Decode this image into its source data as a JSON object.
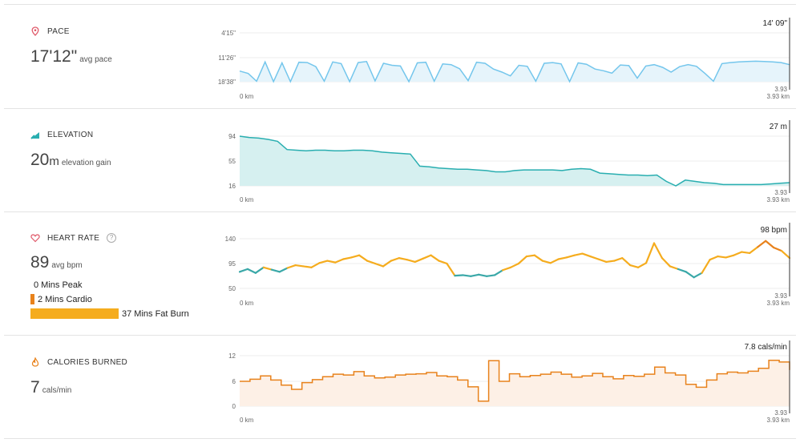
{
  "pace": {
    "title": "PACE",
    "value": "17'12\"",
    "unit": "avg pace",
    "y_ticks": [
      "4'15\"",
      "11'26\"",
      "18'38\""
    ],
    "peak_label": "14' 09\"",
    "x_start": "0 km",
    "x_end_top": "3.93",
    "x_end": "3.93 km",
    "color": "#74c6ec"
  },
  "elevation": {
    "title": "ELEVATION",
    "value": "20",
    "value_unit": "m",
    "unit": "elevation gain",
    "y_ticks": [
      "94",
      "55",
      "16"
    ],
    "peak_label": "27 m",
    "x_start": "0 km",
    "x_end_top": "3.93",
    "x_end": "3.93 km",
    "color": "#29aeb0"
  },
  "heart_rate": {
    "title": "HEART RATE",
    "help": "?",
    "value": "89",
    "unit": "avg bpm",
    "zones": [
      {
        "label": "0 Mins Peak",
        "minutes": 0
      },
      {
        "label": "2 Mins Cardio",
        "minutes": 2
      },
      {
        "label": "37 Mins Fat Burn",
        "minutes": 37
      }
    ],
    "y_ticks": [
      "140",
      "95",
      "50"
    ],
    "peak_label": "98 bpm",
    "x_start": "0 km",
    "x_end_top": "3.93",
    "x_end": "3.93 km",
    "colors": {
      "fat_burn": "#f5ac1e",
      "normal": "#3aa8a8",
      "cardio": "#e8821c"
    }
  },
  "calories": {
    "title": "CALORIES BURNED",
    "value": "7",
    "unit": "cals/min",
    "y_ticks": [
      "12",
      "6",
      "0"
    ],
    "peak_label": "7.8 cals/min",
    "x_start": "0 km",
    "x_end_top": "3.93",
    "x_end": "3.93 km",
    "color": "#e8821c"
  },
  "chart_data": [
    {
      "type": "line",
      "title": "PACE",
      "xlabel": "km",
      "x_range": [
        0,
        3.93
      ],
      "ylim": [
        "18'38\"",
        "4'15\""
      ],
      "series": [
        {
          "name": "pace (min/km, estimated)",
          "values": [
            15.5,
            16.2,
            18.5,
            12.8,
            18.6,
            13.1,
            18.6,
            12.9,
            13.0,
            14.2,
            18.5,
            12.8,
            13.3,
            18.6,
            13.0,
            12.7,
            18.4,
            13.2,
            13.8,
            14.0,
            18.6,
            13.1,
            12.9,
            18.5,
            13.4,
            13.6,
            14.8,
            18.3,
            12.9,
            13.2,
            14.9,
            15.8,
            16.9,
            13.8,
            14.1,
            18.5,
            13.2,
            13.0,
            13.4,
            18.6,
            13.1,
            13.5,
            14.9,
            15.4,
            16.1,
            13.7,
            13.9,
            17.6,
            14.0,
            13.6,
            14.4,
            15.8,
            14.2,
            13.6,
            14.1,
            16.2,
            18.5,
            13.3,
            13.0,
            12.8,
            12.7,
            12.6,
            12.7,
            12.8,
            13.0,
            13.6
          ]
        }
      ]
    },
    {
      "type": "area",
      "title": "ELEVATION",
      "xlabel": "km",
      "x_range": [
        0,
        3.93
      ],
      "ylim": [
        16,
        94
      ],
      "series": [
        {
          "name": "elevation (m)",
          "values": [
            94,
            92,
            91,
            89,
            86,
            73,
            72,
            71,
            72,
            72,
            71,
            71,
            72,
            72,
            71,
            69,
            68,
            67,
            66,
            47,
            46,
            44,
            43,
            42,
            42,
            41,
            40,
            38,
            38,
            40,
            41,
            41,
            41,
            41,
            40,
            42,
            43,
            42,
            36,
            35,
            34,
            33,
            33,
            32,
            33,
            23,
            16,
            25,
            23,
            21,
            20,
            18,
            18,
            18,
            18,
            18,
            19,
            20,
            21
          ]
        }
      ]
    },
    {
      "type": "line",
      "title": "HEART RATE",
      "xlabel": "km",
      "x_range": [
        0,
        3.93
      ],
      "ylim": [
        50,
        140
      ],
      "series": [
        {
          "name": "heart rate (bpm)",
          "values": [
            80,
            85,
            78,
            88,
            84,
            80,
            87,
            92,
            90,
            88,
            96,
            100,
            97,
            103,
            106,
            110,
            100,
            95,
            90,
            100,
            105,
            102,
            98,
            104,
            110,
            100,
            95,
            73,
            74,
            72,
            75,
            72,
            74,
            83,
            88,
            95,
            108,
            110,
            100,
            96,
            103,
            106,
            110,
            113,
            108,
            103,
            98,
            100,
            105,
            92,
            88,
            96,
            132,
            105,
            90,
            85,
            80,
            70,
            78,
            102,
            108,
            106,
            110,
            116,
            114,
            125,
            136,
            124,
            118,
            105
          ]
        }
      ]
    },
    {
      "type": "line",
      "title": "CALORIES BURNED",
      "xlabel": "km",
      "x_range": [
        0,
        3.93
      ],
      "ylim": [
        0,
        12
      ],
      "series": [
        {
          "name": "calories (cals/min)",
          "values": [
            5.9,
            6.4,
            7.2,
            6.2,
            5.0,
            4.0,
            5.6,
            6.3,
            7.0,
            7.6,
            7.4,
            8.2,
            7.2,
            6.7,
            6.9,
            7.4,
            7.6,
            7.7,
            8.0,
            7.2,
            7.0,
            6.2,
            4.6,
            1.2,
            10.8,
            5.9,
            7.7,
            7.0,
            7.3,
            7.6,
            8.1,
            7.6,
            6.9,
            7.2,
            7.8,
            7.0,
            6.5,
            7.3,
            7.1,
            7.6,
            9.3,
            7.9,
            7.4,
            5.2,
            4.5,
            6.2,
            7.7,
            8.1,
            7.9,
            8.3,
            9.0,
            10.9,
            10.5,
            8.6
          ]
        }
      ]
    }
  ]
}
